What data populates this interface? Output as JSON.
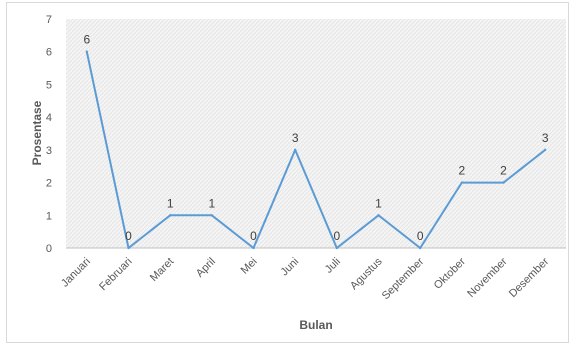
{
  "chart_data": {
    "type": "line",
    "xlabel": "Bulan",
    "ylabel": "Prosentase",
    "ylim": [
      0,
      7
    ],
    "yticks": [
      "0",
      "1",
      "2",
      "3",
      "4",
      "5",
      "6",
      "7"
    ],
    "categories": [
      "Januari",
      "Februari",
      "Maret",
      "April",
      "Mei",
      "Juni",
      "Juli",
      "Agustus",
      "September",
      "Oktober",
      "November",
      "Desember"
    ],
    "series": [
      {
        "values": [
          6,
          0,
          1,
          1,
          0,
          3,
          0,
          1,
          0,
          2,
          2,
          3
        ]
      }
    ],
    "data_labels": [
      "6",
      "0",
      "1",
      "1",
      "0",
      "3",
      "0",
      "1",
      "0",
      "2",
      "2",
      "3"
    ],
    "grid": false,
    "legend": "none",
    "line_color": "#5b9bd5",
    "plot_background": "hatched light gray"
  }
}
